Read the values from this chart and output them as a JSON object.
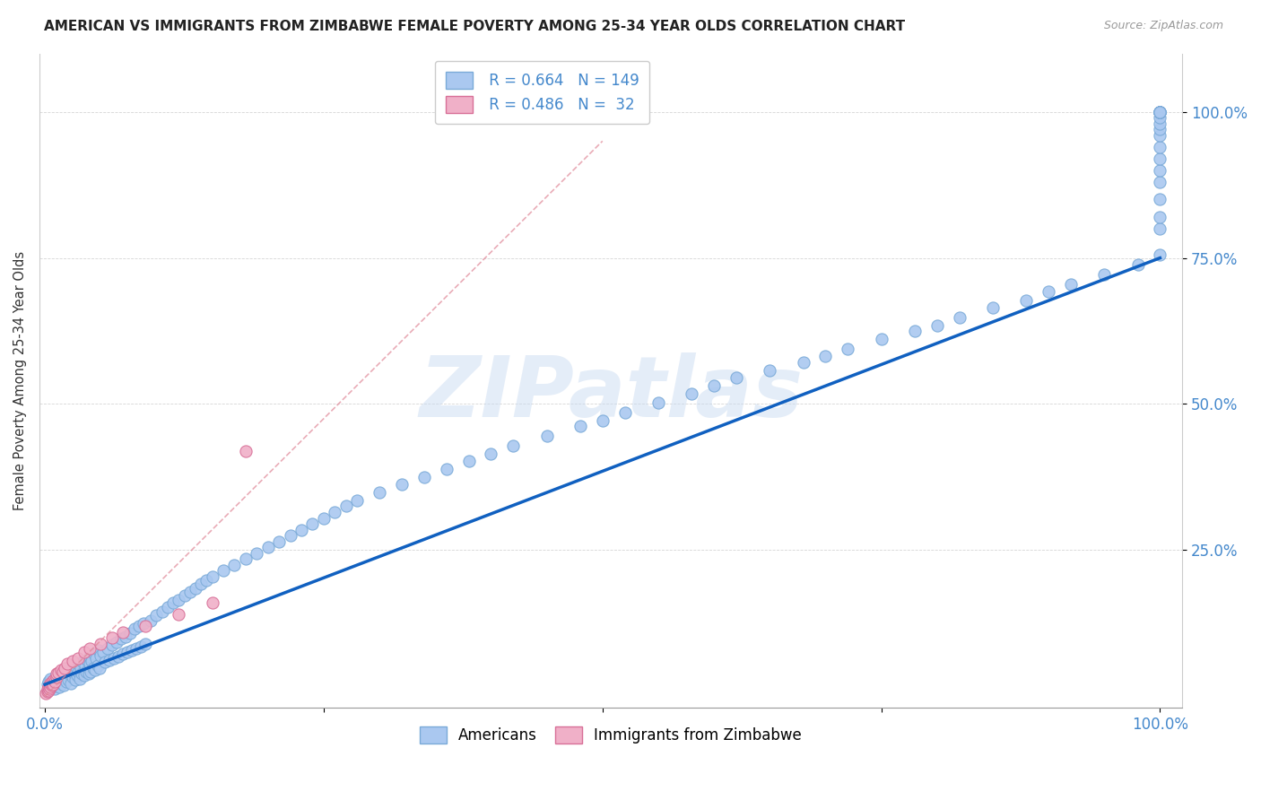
{
  "title": "AMERICAN VS IMMIGRANTS FROM ZIMBABWE FEMALE POVERTY AMONG 25-34 YEAR OLDS CORRELATION CHART",
  "source": "Source: ZipAtlas.com",
  "ylabel": "Female Poverty Among 25-34 Year Olds",
  "watermark": "ZIPatlas",
  "legend_r1": "R = 0.664",
  "legend_n1": "N = 149",
  "legend_r2": "R = 0.486",
  "legend_n2": "N =  32",
  "americans_color": "#aac8f0",
  "americans_edge": "#7aaad8",
  "zimbabwe_color": "#f0b0c8",
  "zimbabwe_edge": "#d87098",
  "trendline_blue": "#1060c0",
  "trendline_pink": "#e08898",
  "yticks": [
    "25.0%",
    "50.0%",
    "75.0%",
    "100.0%"
  ],
  "ytick_vals": [
    0.25,
    0.5,
    0.75,
    1.0
  ],
  "background": "#ffffff",
  "xlim": [
    -0.005,
    1.02
  ],
  "ylim": [
    -0.02,
    1.1
  ],
  "americans_x": [
    0.002,
    0.003,
    0.004,
    0.005,
    0.006,
    0.007,
    0.008,
    0.009,
    0.01,
    0.01,
    0.011,
    0.012,
    0.013,
    0.014,
    0.015,
    0.016,
    0.017,
    0.018,
    0.019,
    0.02,
    0.02,
    0.021,
    0.022,
    0.023,
    0.024,
    0.025,
    0.026,
    0.027,
    0.028,
    0.029,
    0.03,
    0.03,
    0.031,
    0.032,
    0.033,
    0.034,
    0.035,
    0.036,
    0.037,
    0.038,
    0.039,
    0.04,
    0.04,
    0.041,
    0.042,
    0.043,
    0.044,
    0.045,
    0.046,
    0.047,
    0.048,
    0.049,
    0.05,
    0.052,
    0.054,
    0.056,
    0.058,
    0.06,
    0.062,
    0.064,
    0.066,
    0.068,
    0.07,
    0.072,
    0.074,
    0.076,
    0.078,
    0.08,
    0.082,
    0.084,
    0.086,
    0.088,
    0.09,
    0.095,
    0.1,
    0.105,
    0.11,
    0.115,
    0.12,
    0.125,
    0.13,
    0.135,
    0.14,
    0.145,
    0.15,
    0.16,
    0.17,
    0.18,
    0.19,
    0.2,
    0.21,
    0.22,
    0.23,
    0.24,
    0.25,
    0.26,
    0.27,
    0.28,
    0.3,
    0.32,
    0.34,
    0.36,
    0.38,
    0.4,
    0.42,
    0.45,
    0.48,
    0.5,
    0.52,
    0.55,
    0.58,
    0.6,
    0.62,
    0.65,
    0.68,
    0.7,
    0.72,
    0.75,
    0.78,
    0.8,
    0.82,
    0.85,
    0.88,
    0.9,
    0.92,
    0.95,
    0.98,
    1.0,
    1.0,
    1.0,
    1.0,
    1.0,
    1.0,
    1.0,
    1.0,
    1.0,
    1.0,
    1.0,
    1.0,
    1.0,
    1.0,
    1.0,
    1.0,
    1.0,
    1.0,
    1.0,
    1.0,
    1.0,
    1.0
  ],
  "americans_y": [
    0.02,
    0.025,
    0.018,
    0.03,
    0.015,
    0.022,
    0.028,
    0.012,
    0.035,
    0.019,
    0.025,
    0.032,
    0.015,
    0.028,
    0.022,
    0.038,
    0.018,
    0.03,
    0.025,
    0.035,
    0.042,
    0.028,
    0.038,
    0.022,
    0.045,
    0.032,
    0.04,
    0.028,
    0.05,
    0.035,
    0.042,
    0.055,
    0.03,
    0.048,
    0.038,
    0.058,
    0.035,
    0.052,
    0.042,
    0.062,
    0.038,
    0.055,
    0.068,
    0.042,
    0.06,
    0.048,
    0.072,
    0.045,
    0.065,
    0.052,
    0.078,
    0.048,
    0.07,
    0.075,
    0.058,
    0.082,
    0.062,
    0.088,
    0.065,
    0.092,
    0.068,
    0.098,
    0.072,
    0.102,
    0.075,
    0.108,
    0.078,
    0.115,
    0.082,
    0.12,
    0.085,
    0.125,
    0.09,
    0.13,
    0.138,
    0.145,
    0.152,
    0.16,
    0.165,
    0.172,
    0.178,
    0.185,
    0.192,
    0.198,
    0.205,
    0.215,
    0.225,
    0.235,
    0.245,
    0.255,
    0.265,
    0.275,
    0.285,
    0.295,
    0.305,
    0.315,
    0.325,
    0.335,
    0.348,
    0.362,
    0.375,
    0.388,
    0.402,
    0.415,
    0.428,
    0.445,
    0.462,
    0.472,
    0.485,
    0.502,
    0.518,
    0.532,
    0.545,
    0.558,
    0.572,
    0.582,
    0.595,
    0.612,
    0.625,
    0.635,
    0.648,
    0.665,
    0.678,
    0.692,
    0.705,
    0.722,
    0.738,
    0.755,
    0.8,
    0.82,
    0.85,
    0.88,
    0.9,
    0.92,
    0.94,
    0.96,
    0.97,
    0.98,
    0.99,
    1.0,
    1.0,
    1.0,
    1.0,
    1.0,
    1.0,
    1.0,
    1.0,
    1.0,
    1.0
  ],
  "zimbabwe_x": [
    0.001,
    0.002,
    0.002,
    0.003,
    0.003,
    0.004,
    0.004,
    0.005,
    0.005,
    0.006,
    0.006,
    0.007,
    0.008,
    0.009,
    0.01,
    0.01,
    0.012,
    0.014,
    0.016,
    0.018,
    0.02,
    0.025,
    0.03,
    0.035,
    0.04,
    0.05,
    0.06,
    0.07,
    0.09,
    0.12,
    0.15,
    0.18
  ],
  "zimbabwe_y": [
    0.005,
    0.008,
    0.012,
    0.01,
    0.015,
    0.012,
    0.018,
    0.015,
    0.022,
    0.018,
    0.025,
    0.02,
    0.028,
    0.025,
    0.032,
    0.038,
    0.04,
    0.045,
    0.042,
    0.048,
    0.055,
    0.06,
    0.065,
    0.075,
    0.082,
    0.09,
    0.1,
    0.11,
    0.12,
    0.14,
    0.16,
    0.42
  ],
  "am_trend_x": [
    0.0,
    1.0
  ],
  "am_trend_y": [
    0.02,
    0.75
  ],
  "zim_trend_x": [
    0.0,
    0.5
  ],
  "zim_trend_y": [
    0.0,
    0.95
  ]
}
